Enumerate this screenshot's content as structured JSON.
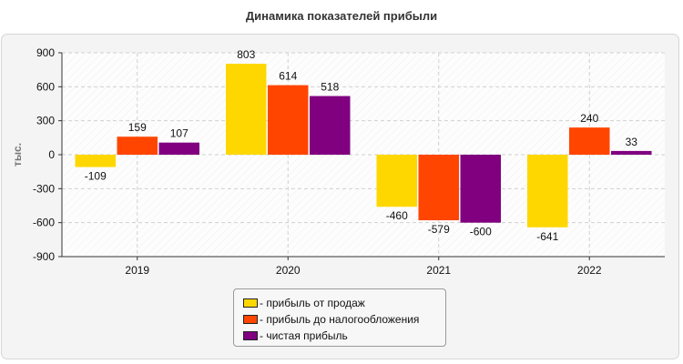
{
  "chart_data": {
    "type": "bar",
    "title": "Динамика показателей прибыли",
    "ylabel": "тыс.",
    "xlabel": "",
    "categories": [
      "2019",
      "2020",
      "2021",
      "2022"
    ],
    "ylim": [
      -900,
      900
    ],
    "yticks": [
      900,
      600,
      300,
      0,
      -300,
      -600,
      -900
    ],
    "grid": true,
    "legend_position": "bottom",
    "series": [
      {
        "name": "- прибыль от продаж",
        "color": "#FFD700",
        "values": [
          -109,
          803,
          -460,
          -641
        ]
      },
      {
        "name": "- прибыль до налогообложения",
        "color": "#FF4500",
        "values": [
          159,
          614,
          -579,
          240
        ]
      },
      {
        "name": "- чистая прибыль",
        "color": "#800080",
        "values": [
          107,
          518,
          -600,
          33
        ]
      }
    ]
  }
}
